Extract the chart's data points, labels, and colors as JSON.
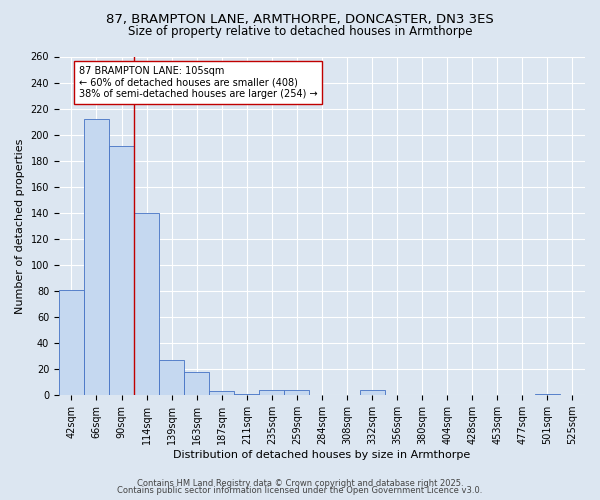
{
  "title_line1": "87, BRAMPTON LANE, ARMTHORPE, DONCASTER, DN3 3ES",
  "title_line2": "Size of property relative to detached houses in Armthorpe",
  "xlabel": "Distribution of detached houses by size in Armthorpe",
  "ylabel": "Number of detached properties",
  "bar_labels": [
    "42sqm",
    "66sqm",
    "90sqm",
    "114sqm",
    "139sqm",
    "163sqm",
    "187sqm",
    "211sqm",
    "235sqm",
    "259sqm",
    "284sqm",
    "308sqm",
    "332sqm",
    "356sqm",
    "380sqm",
    "404sqm",
    "428sqm",
    "453sqm",
    "477sqm",
    "501sqm",
    "525sqm"
  ],
  "bar_values": [
    81,
    212,
    191,
    140,
    27,
    18,
    3,
    1,
    4,
    4,
    0,
    0,
    4,
    0,
    0,
    0,
    0,
    0,
    0,
    1,
    0
  ],
  "bar_color": "#c5d8f0",
  "bar_edge_color": "#4472c4",
  "vline_x": 2.5,
  "vline_color": "#c00000",
  "annotation_text": "87 BRAMPTON LANE: 105sqm\n← 60% of detached houses are smaller (408)\n38% of semi-detached houses are larger (254) →",
  "annotation_box_color": "#ffffff",
  "annotation_box_edgecolor": "#c00000",
  "ylim": [
    0,
    260
  ],
  "yticks": [
    0,
    20,
    40,
    60,
    80,
    100,
    120,
    140,
    160,
    180,
    200,
    220,
    240,
    260
  ],
  "background_color": "#dce6f1",
  "plot_bg_color": "#dce6f1",
  "grid_color": "#ffffff",
  "footer_line1": "Contains HM Land Registry data © Crown copyright and database right 2025.",
  "footer_line2": "Contains public sector information licensed under the Open Government Licence v3.0.",
  "title_fontsize": 9.5,
  "subtitle_fontsize": 8.5,
  "axis_label_fontsize": 8,
  "tick_fontsize": 7,
  "annotation_fontsize": 7,
  "footer_fontsize": 6
}
